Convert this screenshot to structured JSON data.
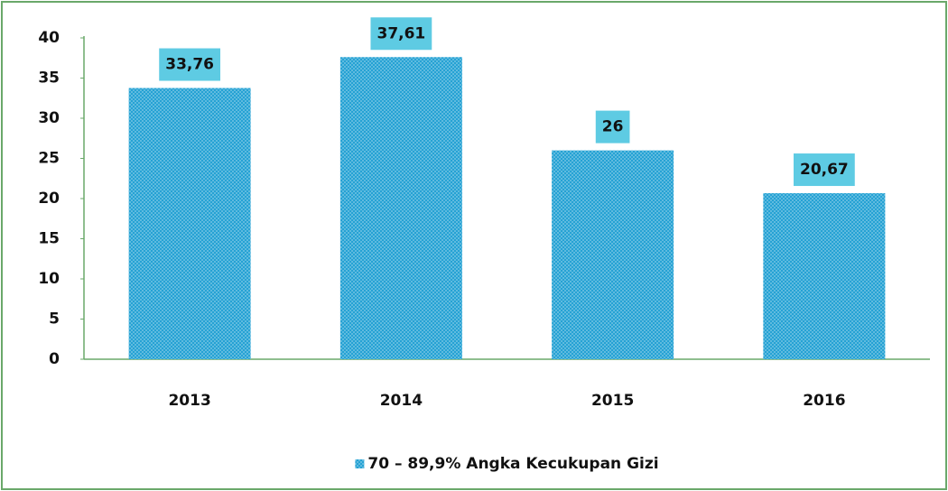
{
  "chart_data": {
    "type": "bar",
    "categories": [
      "2013",
      "2014",
      "2015",
      "2016"
    ],
    "series": [
      {
        "name": "70 – 89,9% Angka Kecukupan Gizi",
        "color": "#1e9fd2",
        "values": [
          33.76,
          37.61,
          26,
          20.67
        ],
        "value_labels": [
          "33,76",
          "37,61",
          "26",
          "20,67"
        ]
      }
    ],
    "ylim": [
      0,
      40
    ],
    "yticks": [
      0,
      5,
      10,
      15,
      20,
      25,
      30,
      35,
      40
    ],
    "grid": false,
    "legend": "bottom"
  }
}
